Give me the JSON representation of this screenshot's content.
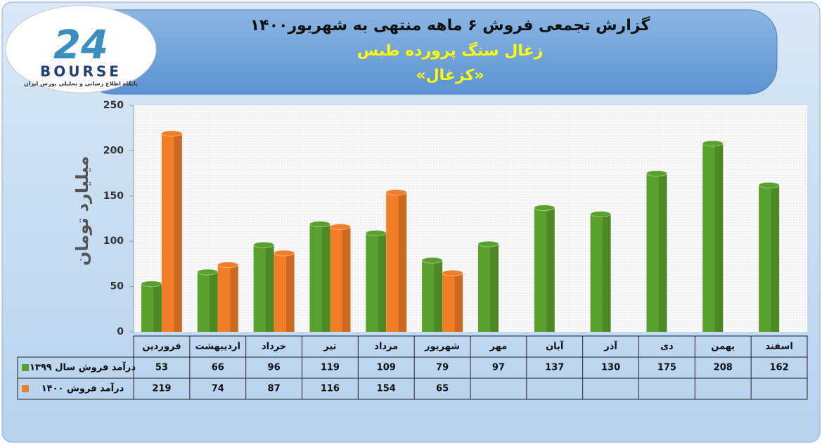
{
  "logo": {
    "mark": "24",
    "name": "BOURSE",
    "tagline": "پایگاه اطلاع رسانی و تحلیلی بورس ایران"
  },
  "chart_data": {
    "type": "bar",
    "title": "گزارش تجمعی فروش ۶ ماهه منتهی به شهریور۱۴۰۰",
    "subtitle": "زغال سنگ پرورده طبس",
    "symbol": "«کزغال»",
    "y_label": "میلیارد تومان",
    "categories": [
      "فروردین",
      "اردیبهشت",
      "خرداد",
      "تیر",
      "مرداد",
      "شهریور",
      "مهر",
      "آبان",
      "آذر",
      "دی",
      "بهمن",
      "اسفند"
    ],
    "series": [
      {
        "name": "درآمد فروش سال ۱۳۹۹",
        "color": "#5aa02c",
        "values": [
          53,
          66,
          96,
          119,
          109,
          79,
          97,
          137,
          130,
          175,
          208,
          162
        ]
      },
      {
        "name": "درآمد فروش ۱۴۰۰",
        "color": "#f07e26",
        "values": [
          219,
          74,
          87,
          116,
          154,
          65,
          null,
          null,
          null,
          null,
          null,
          null
        ]
      }
    ],
    "ylim": [
      0,
      250
    ],
    "yticks": [
      0,
      50,
      100,
      150,
      200,
      250
    ],
    "grid": false,
    "data_table": true
  }
}
